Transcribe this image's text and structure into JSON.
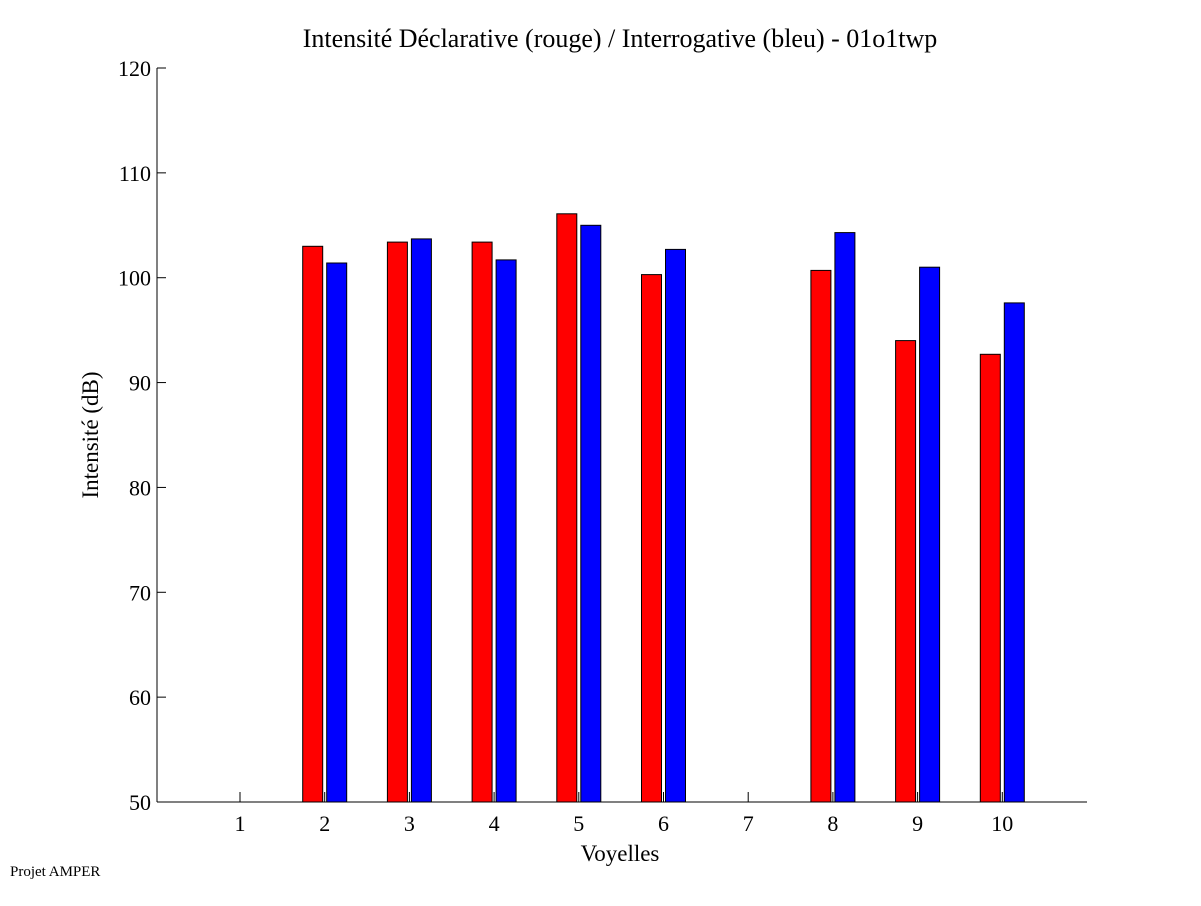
{
  "chart_data": {
    "type": "bar",
    "title": "Intensité Déclarative (rouge) / Interrogative (bleu) - 01o1twp",
    "xlabel": "Voyelles",
    "ylabel": "Intensité (dB)",
    "categories": [
      "1",
      "2",
      "3",
      "4",
      "5",
      "6",
      "7",
      "8",
      "9",
      "10"
    ],
    "ylim": [
      50,
      120
    ],
    "yticks": [
      50,
      60,
      70,
      80,
      90,
      100,
      110,
      120
    ],
    "grid": false,
    "series": [
      {
        "color": "#ff0000",
        "values": [
          null,
          103.0,
          103.4,
          103.4,
          106.1,
          100.3,
          null,
          100.7,
          94.0,
          92.7
        ]
      },
      {
        "color": "#0000ff",
        "values": [
          null,
          101.4,
          103.7,
          101.7,
          105.0,
          102.7,
          null,
          104.3,
          101.0,
          97.6
        ]
      }
    ]
  },
  "footer": {
    "note": "Projet AMPER"
  }
}
